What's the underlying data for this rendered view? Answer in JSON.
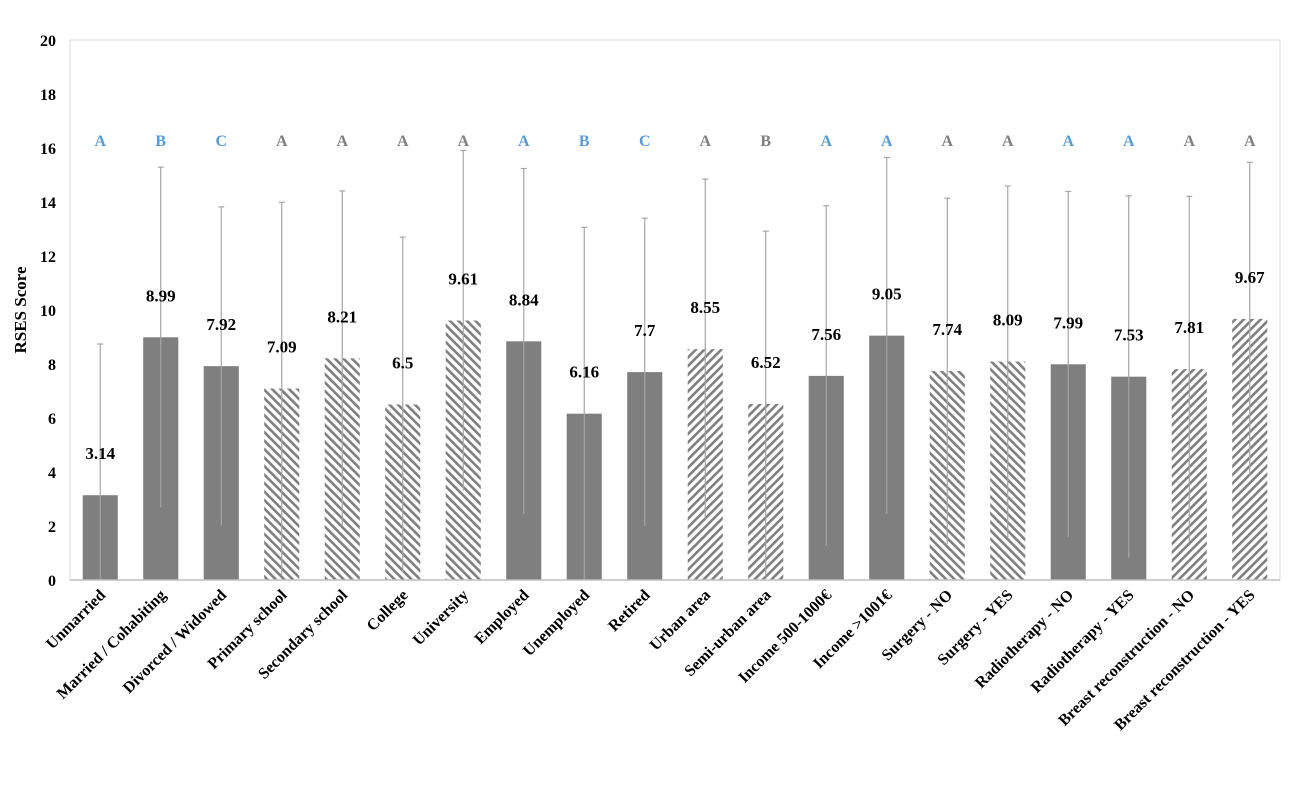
{
  "chart_data": {
    "type": "bar",
    "title": "",
    "xlabel": "",
    "ylabel": "RSES Score",
    "ylim": [
      0,
      20
    ],
    "yticks": [
      0,
      2,
      4,
      6,
      8,
      10,
      12,
      14,
      16,
      18,
      20
    ],
    "grid": false,
    "legend": "none",
    "colors": {
      "bar": "#7f7f7f",
      "error_bar": "#a6a6a6",
      "letter_blue": "#5b9bd5",
      "letter_gray": "#7f7f7f",
      "axis": "#d9d9d9"
    },
    "categories": [
      "Unmarried",
      "Married / Cohabiting",
      "Divorced / Widowed",
      "Primary school",
      "Secondary school",
      "College",
      "University",
      "Employed",
      "Unemployed",
      "Retired",
      "Urban area",
      "Semi-urban area",
      "Income 500-1000€",
      "Income >1001€",
      "Surgery - NO",
      "Surgery - YES",
      "Radiotherapy - NO",
      "Radiotherapy - YES",
      "Breast reconstruction - NO",
      "Breast reconstruction - YES"
    ],
    "values": [
      3.14,
      8.99,
      7.92,
      7.09,
      8.21,
      6.5,
      9.61,
      8.84,
      6.16,
      7.7,
      8.55,
      6.52,
      7.56,
      9.05,
      7.74,
      8.09,
      7.99,
      7.53,
      7.81,
      9.67
    ],
    "data_labels": [
      "3.14",
      "8.99",
      "7.92",
      "7.09",
      "8.21",
      "6.5",
      "9.61",
      "8.84",
      "6.16",
      "7.7",
      "8.55",
      "6.52",
      "7.56",
      "9.05",
      "7.74",
      "8.09",
      "7.99",
      "7.53",
      "7.81",
      "9.67"
    ],
    "error_sd": [
      5.6,
      6.3,
      5.9,
      6.9,
      6.2,
      6.2,
      6.3,
      6.4,
      6.9,
      5.7,
      6.3,
      6.4,
      6.3,
      6.6,
      6.4,
      6.5,
      6.4,
      6.7,
      6.4,
      5.8
    ],
    "fill": [
      "solid",
      "solid",
      "solid",
      "hatch-back",
      "hatch-back",
      "hatch-back",
      "hatch-back",
      "solid",
      "solid",
      "solid",
      "hatch-fwd",
      "hatch-fwd",
      "solid",
      "solid",
      "hatch-back",
      "hatch-back",
      "solid",
      "solid",
      "hatch-fwd",
      "hatch-fwd"
    ],
    "group_letters": [
      "A",
      "B",
      "C",
      "A",
      "A",
      "A",
      "A",
      "A",
      "B",
      "C",
      "A",
      "B",
      "A",
      "A",
      "A",
      "A",
      "A",
      "A",
      "A",
      "A"
    ],
    "letter_colors": [
      "blue",
      "blue",
      "blue",
      "gray",
      "gray",
      "gray",
      "gray",
      "blue",
      "blue",
      "blue",
      "gray",
      "gray",
      "blue",
      "blue",
      "gray",
      "gray",
      "blue",
      "blue",
      "gray",
      "gray"
    ]
  }
}
